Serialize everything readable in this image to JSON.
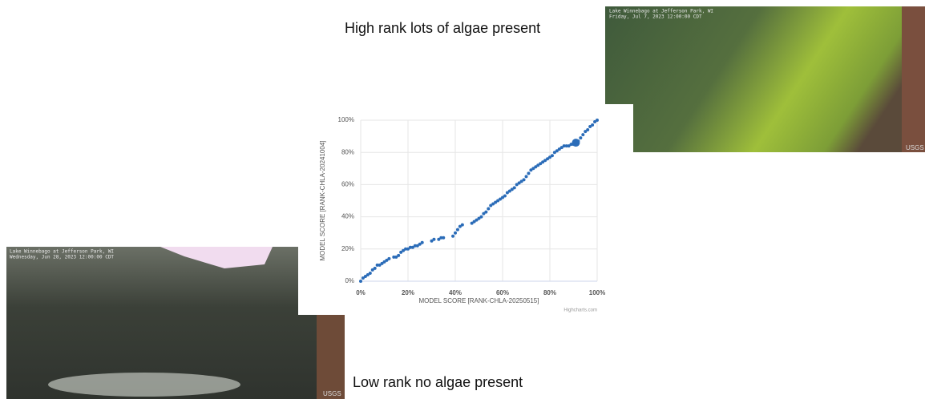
{
  "captions": {
    "high": "High rank lots of algae present",
    "low": "Low rank no algae present"
  },
  "images": {
    "top": {
      "location": "Lake Winnebago at Jefferson Park, WI",
      "timestamp": "Friday, Jul 7, 2023  12:00:00 CDT",
      "logo": "USGS"
    },
    "bottom": {
      "location": "Lake Winnebago at Jefferson Park, WI",
      "timestamp": "Wednesday, Jun 28, 2023  12:00:00 CDT",
      "logo": "USGS"
    }
  },
  "chart_data": {
    "type": "scatter",
    "x_label": "MODEL SCORE [RANK-CHLA-20250515]",
    "y_label": "MODEL SCORE [RANK-CHLA-20241004]",
    "credit": "Highcharts.com",
    "xlim": [
      0,
      100
    ],
    "ylim": [
      0,
      100
    ],
    "xticks": [
      {
        "value": 0,
        "label": "0%"
      },
      {
        "value": 20,
        "label": "20%"
      },
      {
        "value": 40,
        "label": "40%"
      },
      {
        "value": 60,
        "label": "60%"
      },
      {
        "value": 80,
        "label": "80%"
      },
      {
        "value": 100,
        "label": "100%"
      }
    ],
    "yticks": [
      {
        "value": 0,
        "label": "0%"
      },
      {
        "value": 20,
        "label": "20%"
      },
      {
        "value": 40,
        "label": "40%"
      },
      {
        "value": 60,
        "label": "60%"
      },
      {
        "value": 80,
        "label": "80%"
      },
      {
        "value": 100,
        "label": "100%"
      }
    ],
    "grid": true,
    "series": [
      {
        "color": "#2b6cb8",
        "marker_radius": 2,
        "x": [
          0,
          1,
          2,
          3,
          4,
          5,
          6,
          7,
          8,
          9,
          10,
          11,
          12,
          14,
          15,
          16,
          17,
          18,
          19,
          20,
          21,
          22,
          23,
          24,
          25,
          26,
          30,
          31,
          33,
          34,
          35,
          39,
          40,
          41,
          42,
          43,
          47,
          48,
          49,
          50,
          51,
          52,
          53,
          54,
          55,
          56,
          57,
          58,
          59,
          60,
          61,
          62,
          63,
          64,
          65,
          66,
          67,
          68,
          69,
          70,
          71,
          72,
          73,
          74,
          75,
          76,
          77,
          78,
          79,
          80,
          81,
          82,
          83,
          84,
          85,
          86,
          87,
          88,
          89,
          90,
          92,
          93,
          94,
          95,
          96,
          97,
          98,
          99,
          100
        ],
        "values": [
          0,
          2,
          3,
          4,
          5,
          7,
          8,
          10,
          10,
          11,
          12,
          13,
          14,
          15,
          15,
          16,
          18,
          19,
          20,
          20,
          21,
          21,
          22,
          22,
          23,
          24,
          25,
          26,
          26,
          27,
          27,
          28,
          30,
          32,
          34,
          35,
          36,
          37,
          38,
          39,
          40,
          42,
          43,
          45,
          47,
          48,
          49,
          50,
          51,
          52,
          53,
          55,
          56,
          57,
          58,
          60,
          61,
          62,
          63,
          65,
          67,
          69,
          70,
          71,
          72,
          73,
          74,
          75,
          76,
          77,
          78,
          80,
          81,
          82,
          83,
          84,
          84,
          84,
          85,
          85,
          87,
          89,
          91,
          93,
          94,
          96,
          97,
          99,
          100
        ]
      },
      {
        "color": "#2b6cb8",
        "marker_radius": 5,
        "x": [
          91
        ],
        "values": [
          86
        ]
      }
    ]
  }
}
